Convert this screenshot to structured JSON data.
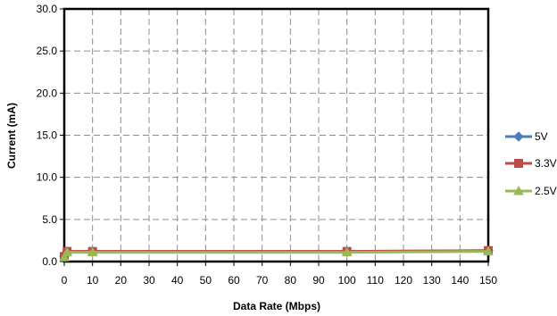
{
  "chart_data": {
    "type": "line",
    "title": "",
    "xlabel": "Data Rate (Mbps)",
    "ylabel": "Current (mA)",
    "xlim": [
      0,
      150
    ],
    "ylim": [
      0,
      30
    ],
    "x_ticks": [
      0,
      10,
      20,
      30,
      40,
      50,
      60,
      70,
      80,
      90,
      100,
      110,
      120,
      130,
      140,
      150
    ],
    "y_ticks": [
      0,
      5,
      10,
      15,
      20,
      25,
      30
    ],
    "y_tick_labels": [
      "0.0",
      "5.0",
      "10.0",
      "15.0",
      "20.0",
      "25.0",
      "30.0"
    ],
    "x_tick_labels": [
      "0",
      "10",
      "20",
      "30",
      "40",
      "50",
      "60",
      "70",
      "80",
      "90",
      "100",
      "110",
      "120",
      "130",
      "140",
      "150"
    ],
    "grid": true,
    "legend_position": "right",
    "series": [
      {
        "name": "5V",
        "color": "#4a7ebb",
        "marker": "diamond",
        "x": [
          0,
          1,
          10,
          100,
          150
        ],
        "y": [
          0.6,
          1.2,
          1.2,
          1.2,
          1.3
        ]
      },
      {
        "name": "3.3V",
        "color": "#be4b48",
        "marker": "square",
        "x": [
          0,
          1,
          10,
          100,
          150
        ],
        "y": [
          0.6,
          1.2,
          1.2,
          1.2,
          1.3
        ]
      },
      {
        "name": "2.5V",
        "color": "#98b954",
        "marker": "triangle",
        "x": [
          0,
          1,
          10,
          100,
          150
        ],
        "y": [
          0.5,
          1.1,
          1.1,
          1.1,
          1.2
        ]
      }
    ]
  }
}
